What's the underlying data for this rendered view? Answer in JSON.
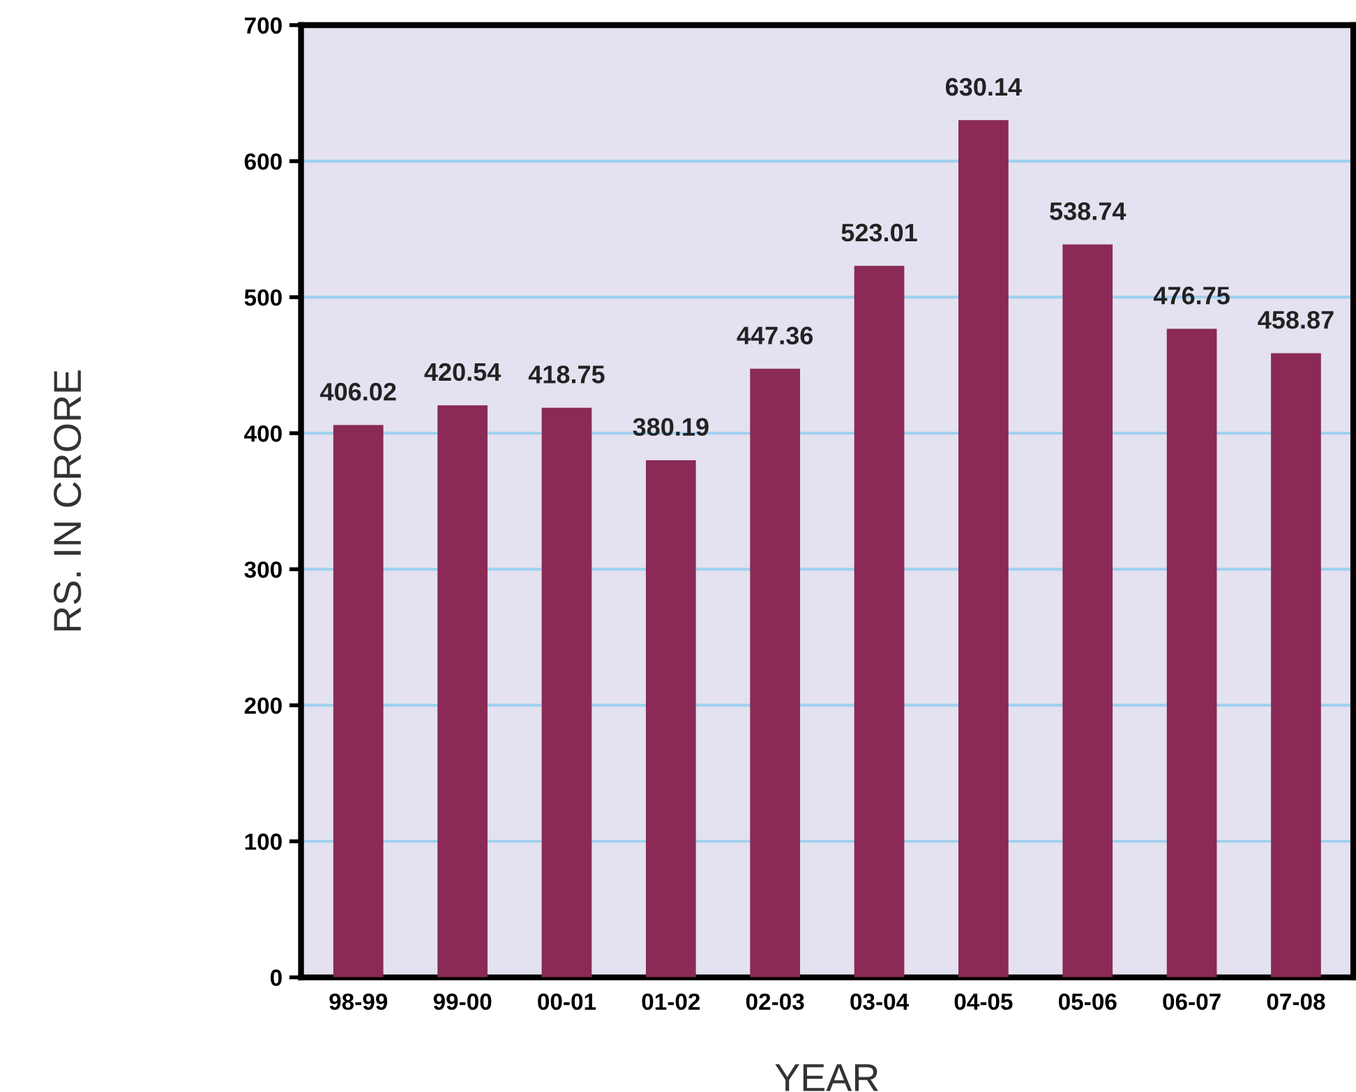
{
  "chart_data": {
    "type": "bar",
    "xlabel": "YEAR",
    "ylabel": "RS. IN CRORE",
    "categories": [
      "98-99",
      "99-00",
      "00-01",
      "01-02",
      "02-03",
      "03-04",
      "04-05",
      "05-06",
      "06-07",
      "07-08"
    ],
    "values": [
      406.02,
      420.54,
      418.75,
      380.19,
      447.36,
      523.01,
      630.14,
      538.74,
      476.75,
      458.87
    ],
    "color": "#8a2a55",
    "ylim": [
      0,
      700
    ],
    "yticks": [
      0,
      100,
      200,
      300,
      400,
      500,
      600,
      700
    ],
    "grid": "y",
    "data_labels": true
  }
}
